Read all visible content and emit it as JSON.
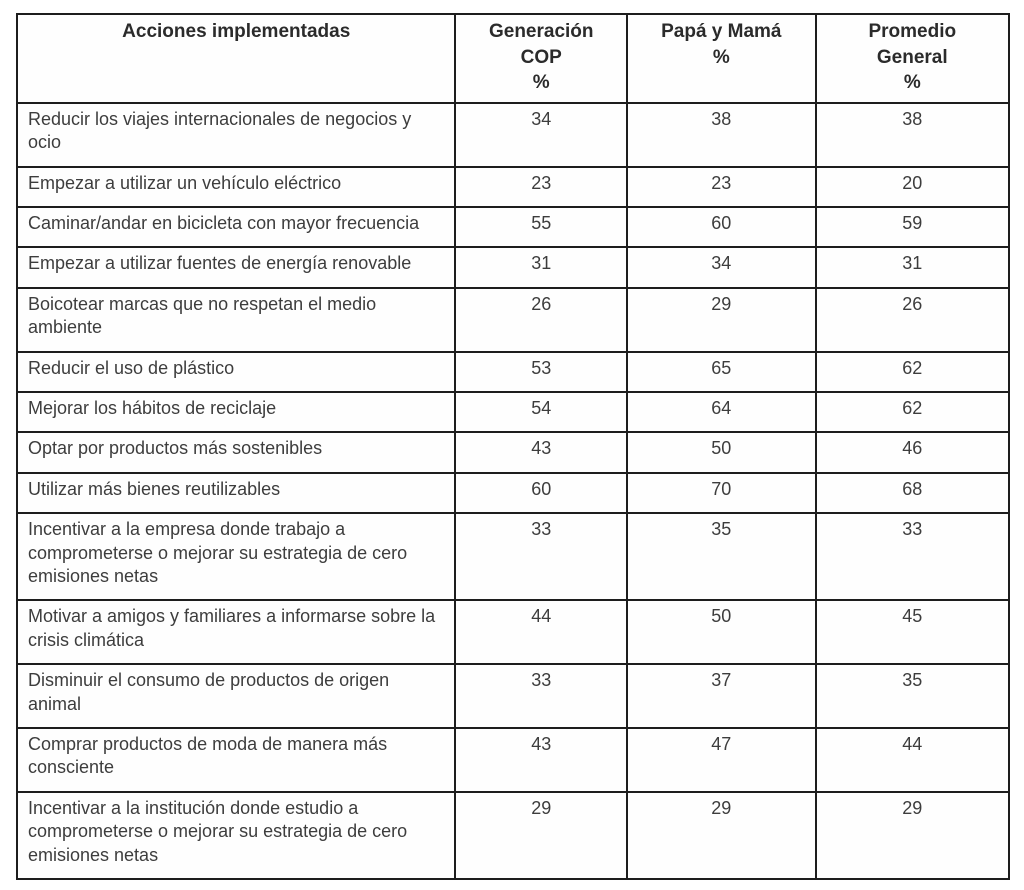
{
  "colors": {
    "border": "#1d1d1d",
    "header_text": "#2b2b2b",
    "body_text": "#3d3d3d",
    "background": "#ffffff"
  },
  "table": {
    "headers": [
      "Acciones implementadas",
      "Generación\nCOP\n%",
      "Papá y Mamá\n%",
      "Promedio\nGeneral\n%"
    ],
    "rows": [
      {
        "action": "Reducir los viajes internacionales de negocios y ocio",
        "generacion_cop": "34",
        "papa_y_mama": "38",
        "promedio_general": "38"
      },
      {
        "action": "Empezar a utilizar un vehículo eléctrico",
        "generacion_cop": "23",
        "papa_y_mama": "23",
        "promedio_general": "20"
      },
      {
        "action": "Caminar/andar en bicicleta con mayor frecuencia",
        "generacion_cop": "55",
        "papa_y_mama": "60",
        "promedio_general": "59"
      },
      {
        "action": "Empezar a utilizar fuentes de energía renovable",
        "generacion_cop": "31",
        "papa_y_mama": "34",
        "promedio_general": "31"
      },
      {
        "action": "Boicotear marcas que no respetan el medio ambiente",
        "generacion_cop": "26",
        "papa_y_mama": "29",
        "promedio_general": "26"
      },
      {
        "action": "Reducir el uso de plástico",
        "generacion_cop": "53",
        "papa_y_mama": "65",
        "promedio_general": "62"
      },
      {
        "action": "Mejorar los hábitos de reciclaje",
        "generacion_cop": "54",
        "papa_y_mama": "64",
        "promedio_general": "62"
      },
      {
        "action": "Optar por productos más sostenibles",
        "generacion_cop": "43",
        "papa_y_mama": "50",
        "promedio_general": "46"
      },
      {
        "action": "Utilizar más bienes reutilizables",
        "generacion_cop": "60",
        "papa_y_mama": "70",
        "promedio_general": "68"
      },
      {
        "action": "Incentivar a la empresa donde trabajo a comprometerse o mejorar su estrategia de cero emisiones netas",
        "generacion_cop": "33",
        "papa_y_mama": "35",
        "promedio_general": "33"
      },
      {
        "action": "Motivar a amigos y familiares a informarse sobre la crisis climática",
        "generacion_cop": "44",
        "papa_y_mama": "50",
        "promedio_general": "45"
      },
      {
        "action": "Disminuir el consumo de productos de origen animal",
        "generacion_cop": "33",
        "papa_y_mama": "37",
        "promedio_general": "35"
      },
      {
        "action": "Comprar productos de moda de manera más consciente",
        "generacion_cop": "43",
        "papa_y_mama": "47",
        "promedio_general": "44"
      },
      {
        "action": "Incentivar a la institución donde estudio a comprometerse o mejorar su estrategia de cero emisiones netas",
        "generacion_cop": "29",
        "papa_y_mama": "29",
        "promedio_general": "29"
      }
    ]
  }
}
